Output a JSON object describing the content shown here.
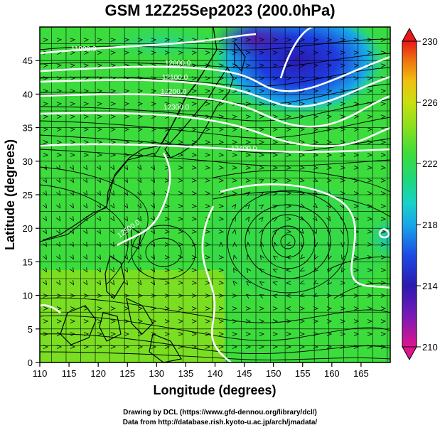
{
  "title": "GSM 12Z25Sep2023 (200.0hPa)",
  "x_axis": {
    "label": "Longitude (degrees)",
    "range": [
      110,
      170
    ],
    "ticks": [
      110,
      115,
      120,
      125,
      130,
      135,
      140,
      145,
      150,
      155,
      160,
      165
    ]
  },
  "y_axis": {
    "label": "Latitude (degrees)",
    "range": [
      0,
      50
    ],
    "ticks": [
      0,
      5,
      10,
      15,
      20,
      25,
      30,
      35,
      40,
      45
    ]
  },
  "colorbar": {
    "range": [
      210,
      230
    ],
    "tick_labels": [
      "230",
      "226",
      "222",
      "218",
      "214",
      "210"
    ],
    "colors": [
      "#e0148c",
      "#7a1ab8",
      "#2a1ab0",
      "#1e4ae6",
      "#18a8e8",
      "#18d2c8",
      "#20d878",
      "#3cdc3c",
      "#8ae01c",
      "#c8e010",
      "#f0c010",
      "#f07010",
      "#e81818"
    ]
  },
  "contour_labels": [
    "11900.0",
    "12000.0",
    "12100.0",
    "12200.0",
    "12300.0",
    "12400.0",
    "12500.0"
  ],
  "credits": {
    "line1": "Drawing by DCL (https://www.gfd-dennou.org/library/dcl/)",
    "line2": "Data from http://database.rish.kyoto-u.ac.jp/arch/jmadata/"
  },
  "colors": {
    "land": "#ffffff",
    "coast": "#000000",
    "contour": "#ffffff"
  }
}
